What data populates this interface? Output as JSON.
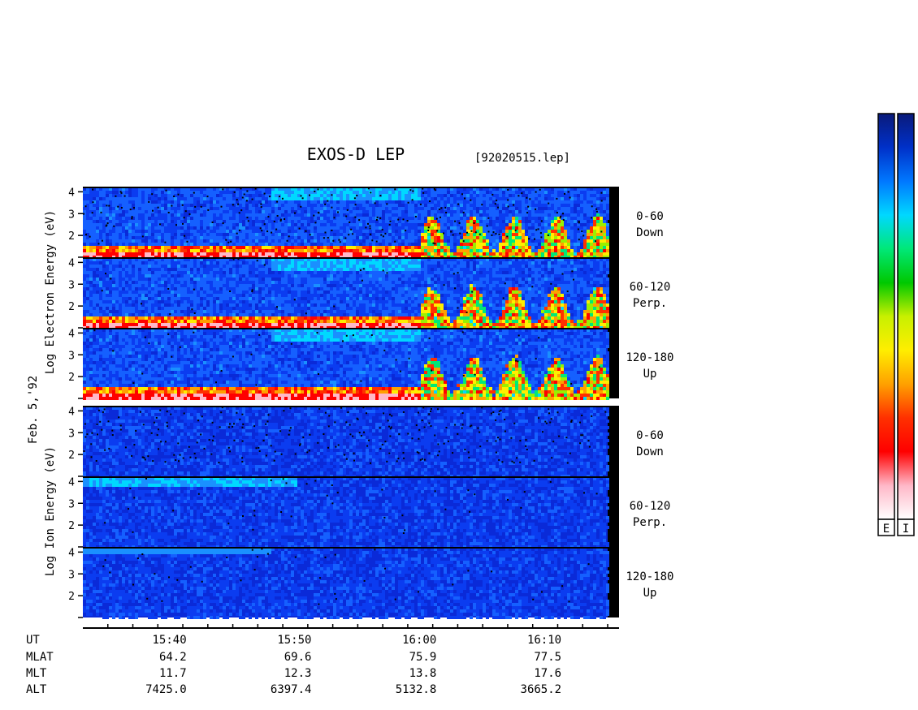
{
  "title": "EXOS-D LEP",
  "file_label": "[92020515.lep]",
  "date_label": "Feb. 5,'92",
  "electron_axis_label": "Log  Electron  Energy (eV)",
  "ion_axis_label": "Log  Ion  Energy (eV)",
  "panels": [
    {
      "species": "electron",
      "range": "0-60",
      "direction": "Down",
      "active_from": 16.0
    },
    {
      "species": "electron",
      "range": "60-120",
      "direction": "Perp.",
      "active_from": 16.0
    },
    {
      "species": "electron",
      "range": "120-180",
      "direction": "Up",
      "active_from": 16.0
    },
    {
      "species": "ion",
      "range": "0-60",
      "direction": "Down"
    },
    {
      "species": "ion",
      "range": "60-120",
      "direction": "Perp."
    },
    {
      "species": "ion",
      "range": "120-180",
      "direction": "Up"
    }
  ],
  "colorbar_labels": [
    "E",
    "I"
  ],
  "colorbar_colors": [
    "#0a1a7a",
    "#0030c8",
    "#0078ff",
    "#00d8ff",
    "#00e878",
    "#00c800",
    "#c8f000",
    "#ffee00",
    "#ffa000",
    "#ff3000",
    "#ff0000",
    "#ffb8c8",
    "#ffffff"
  ],
  "colors": {
    "background_low": "#0a2ad8",
    "background_mid": "#1560ff",
    "band": "#ff2a00",
    "band_edge": "#ffd200",
    "dropout": "#000000"
  },
  "chart_data": {
    "type": "heatmap",
    "ylim": [
      1,
      4.2
    ],
    "yticks": [
      2,
      3,
      4
    ],
    "xlim_minutes": [
      33,
      15
    ],
    "xticks": [
      "15:40",
      "15:50",
      "16:00",
      "16:10"
    ],
    "ephemeris": [
      {
        "label": "UT",
        "values": [
          "15:40",
          "15:50",
          "16:00",
          "16:10"
        ]
      },
      {
        "label": "MLAT",
        "values": [
          "64.2",
          "69.6",
          "75.9",
          "77.5"
        ]
      },
      {
        "label": "MLT",
        "values": [
          "11.7",
          "12.3",
          "13.8",
          "17.6"
        ]
      },
      {
        "label": "ALT",
        "values": [
          "7425.0",
          "6397.4",
          "5132.8",
          "3665.2"
        ]
      }
    ]
  }
}
